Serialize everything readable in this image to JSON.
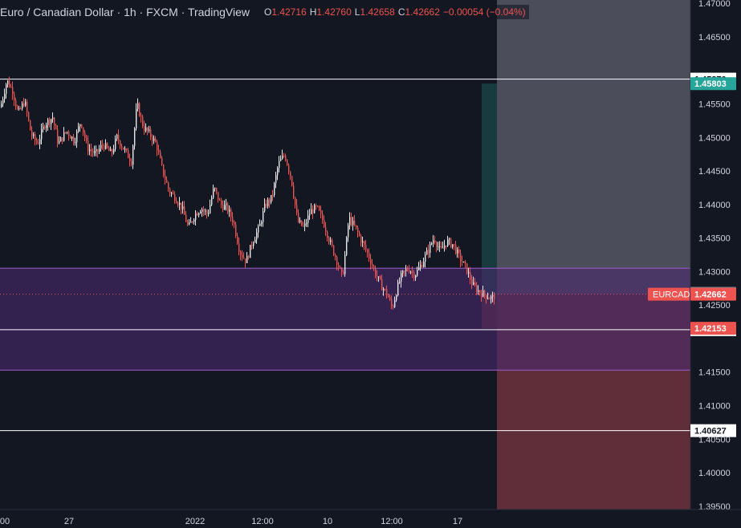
{
  "header": {
    "symbol_title": "Euro / Canadian Dollar · 1h · FXCM · TradingView",
    "ohlc": [
      {
        "key": "O",
        "value": "1.42716"
      },
      {
        "key": "H",
        "value": "1.42760"
      },
      {
        "key": "L",
        "value": "1.42658"
      },
      {
        "key": "C",
        "value": "1.42662"
      },
      {
        "key": "",
        "value": "−0.00054 (−0.04%)"
      }
    ]
  },
  "colors": {
    "background": "#131722",
    "text": "#d1d4dc",
    "down": "#ef5350",
    "up": "#26a69a",
    "zone": "#4a2a6e",
    "stop_zone": "#f05a64",
    "target_zone": "#7a7a8a"
  },
  "chart_data": {
    "type": "candlestick",
    "symbol": "EURCAD",
    "timeframe": "1h",
    "ylim": [
      1.3945,
      1.4705
    ],
    "y_ticks": [
      "1.47000",
      "1.46500",
      "1.45500",
      "1.45000",
      "1.44500",
      "1.44000",
      "1.43500",
      "1.43000",
      "1.42500",
      "1.41500",
      "1.41000",
      "1.40500",
      "1.40000",
      "1.39500"
    ],
    "x_ticks": [
      {
        "label": "00",
        "x": 0
      },
      {
        "label": "27",
        "x": 86
      },
      {
        "label": "2022",
        "x": 243
      },
      {
        "label": "12:00",
        "x": 327
      },
      {
        "label": "10",
        "x": 408
      },
      {
        "label": "12:00",
        "x": 488
      },
      {
        "label": "17",
        "x": 570
      }
    ],
    "close_path": [
      [
        0,
        1.4545
      ],
      [
        8,
        1.4585
      ],
      [
        15,
        1.457
      ],
      [
        22,
        1.4535
      ],
      [
        30,
        1.4555
      ],
      [
        38,
        1.4505
      ],
      [
        46,
        1.449
      ],
      [
        55,
        1.452
      ],
      [
        65,
        1.453
      ],
      [
        72,
        1.449
      ],
      [
        82,
        1.451
      ],
      [
        92,
        1.4495
      ],
      [
        100,
        1.4525
      ],
      [
        108,
        1.4485
      ],
      [
        118,
        1.4475
      ],
      [
        128,
        1.449
      ],
      [
        138,
        1.4475
      ],
      [
        145,
        1.45
      ],
      [
        155,
        1.448
      ],
      [
        163,
        1.4465
      ],
      [
        170,
        1.455
      ],
      [
        178,
        1.4515
      ],
      [
        186,
        1.4505
      ],
      [
        194,
        1.449
      ],
      [
        202,
        1.445
      ],
      [
        210,
        1.442
      ],
      [
        218,
        1.441
      ],
      [
        226,
        1.4395
      ],
      [
        234,
        1.4365
      ],
      [
        242,
        1.4385
      ],
      [
        250,
        1.4395
      ],
      [
        258,
        1.4385
      ],
      [
        266,
        1.4425
      ],
      [
        274,
        1.44
      ],
      [
        282,
        1.4395
      ],
      [
        290,
        1.4375
      ],
      [
        298,
        1.433
      ],
      [
        306,
        1.4315
      ],
      [
        314,
        1.4345
      ],
      [
        322,
        1.4365
      ],
      [
        330,
        1.44
      ],
      [
        338,
        1.441
      ],
      [
        346,
        1.446
      ],
      [
        354,
        1.4475
      ],
      [
        362,
        1.444
      ],
      [
        370,
        1.4375
      ],
      [
        378,
        1.4365
      ],
      [
        386,
        1.439
      ],
      [
        394,
        1.4395
      ],
      [
        402,
        1.4375
      ],
      [
        410,
        1.4345
      ],
      [
        418,
        1.432
      ],
      [
        426,
        1.429
      ],
      [
        434,
        1.438
      ],
      [
        442,
        1.4365
      ],
      [
        450,
        1.4345
      ],
      [
        458,
        1.4325
      ],
      [
        466,
        1.43
      ],
      [
        474,
        1.428
      ],
      [
        482,
        1.4265
      ],
      [
        488,
        1.4245
      ],
      [
        494,
        1.4275
      ],
      [
        500,
        1.4295
      ],
      [
        508,
        1.4305
      ],
      [
        516,
        1.4295
      ],
      [
        524,
        1.431
      ],
      [
        532,
        1.433
      ],
      [
        540,
        1.435
      ],
      [
        548,
        1.433
      ],
      [
        556,
        1.4345
      ],
      [
        564,
        1.434
      ],
      [
        572,
        1.432
      ],
      [
        580,
        1.4305
      ],
      [
        588,
        1.428
      ],
      [
        596,
        1.427
      ],
      [
        604,
        1.4265
      ],
      [
        612,
        1.426
      ],
      [
        617,
        1.4266
      ]
    ],
    "price_lines": [
      {
        "value": "1.45870",
        "y": 1.4587,
        "style": "white"
      },
      {
        "value": "1.42133",
        "y": 1.42133,
        "style": "white"
      },
      {
        "value": "1.40627",
        "y": 1.40627,
        "style": "white"
      }
    ],
    "price_tags": [
      {
        "value": "1.45803",
        "y": 1.45803,
        "bg": "#26a69a",
        "fg": "#ffffff"
      },
      {
        "value": "1.42676",
        "y": 1.42676,
        "bg": "#7a7d8a",
        "fg": "#ffffff"
      },
      {
        "value": "1.42662",
        "y": 1.42662,
        "bg": "#ef5350",
        "fg": "#ffffff",
        "symbol": "EURCAD"
      },
      {
        "value": "1.42153",
        "y": 1.42153,
        "bg": "#ef5350",
        "fg": "#ffffff"
      }
    ],
    "zone": {
      "from": 1.4153,
      "to": 1.4305
    },
    "position": {
      "entry": 1.42662,
      "target": 1.45803,
      "stop": 1.42153,
      "stop_lower": 1.4153,
      "target_upper": 1.4705
    }
  }
}
